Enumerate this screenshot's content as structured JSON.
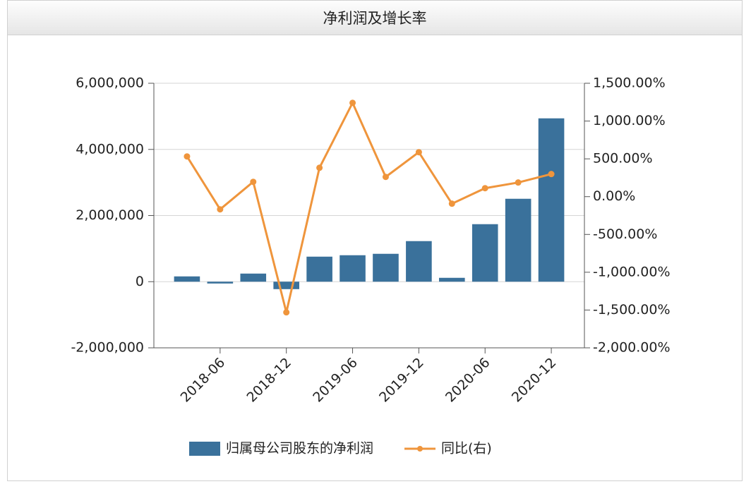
{
  "chart_data": {
    "type": "bar",
    "title": "净利润及增长率",
    "categories": [
      null,
      "2018-06",
      null,
      "2018-12",
      null,
      "2019-06",
      null,
      "2019-12",
      null,
      "2020-06",
      null,
      "2020-12"
    ],
    "series": [
      {
        "name": "归属母公司股东的净利润",
        "type": "bar",
        "color": "#3a719b",
        "values": [
          160000,
          -55000,
          245000,
          -225000,
          757000,
          800000,
          843000,
          1227000,
          117000,
          1739000,
          2507000,
          4939000
        ]
      },
      {
        "name": "同比(右)",
        "type": "line",
        "axis": "y2",
        "color": "#ef953c",
        "values": [
          532,
          -168,
          196,
          -1530,
          382,
          1241,
          261,
          588,
          -93,
          112,
          187,
          299
        ]
      }
    ],
    "ylim": [
      -2000000,
      6000000
    ],
    "yticks": [
      {
        "value": -2000000,
        "label": "-2,000,000"
      },
      0,
      {
        "value": 2000000,
        "label": "2,000,000"
      },
      {
        "value": 4000000,
        "label": "4,000,000"
      },
      {
        "value": 6000000,
        "label": "6,000,000"
      }
    ],
    "y2lim": [
      -2000,
      1500
    ],
    "y2ticks": [
      {
        "value": -2000,
        "label": "-2,000.00%"
      },
      {
        "value": -1500,
        "label": "-1,500.00%"
      },
      {
        "value": -1000,
        "label": "-1,000.00%"
      },
      {
        "value": -500,
        "label": "-500.00%"
      },
      {
        "value": 0,
        "label": "0.00%"
      },
      {
        "value": 500,
        "label": "500.00%"
      },
      {
        "value": 1000,
        "label": "1,000.00%"
      },
      {
        "value": 1500,
        "label": "1,500.00%"
      }
    ],
    "grid": true
  }
}
